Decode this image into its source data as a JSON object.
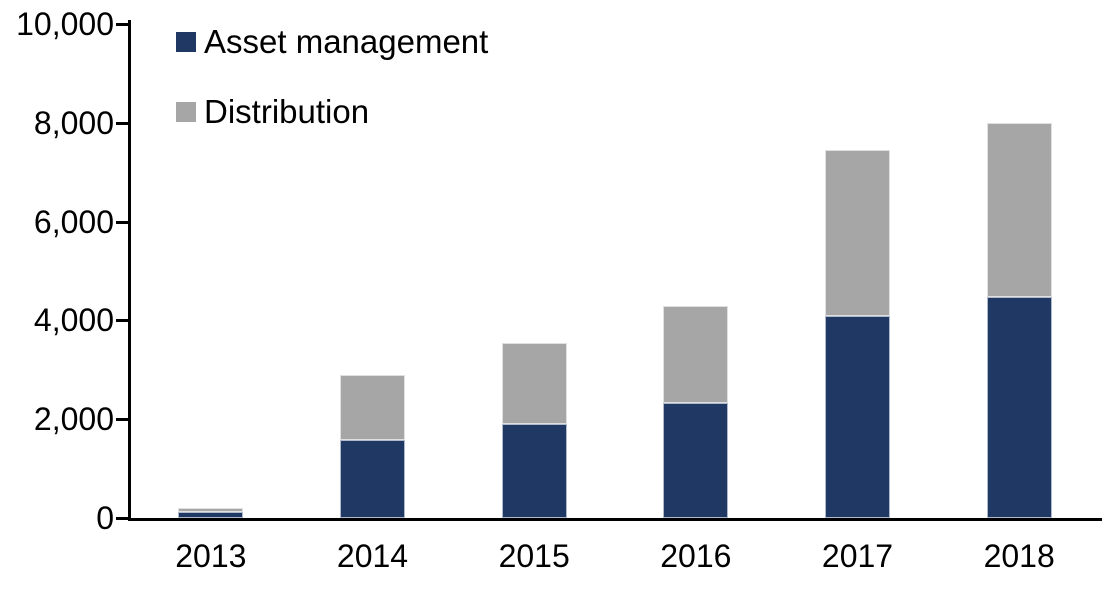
{
  "chart_data": {
    "type": "bar",
    "stacked": true,
    "title": "",
    "categories": [
      "2013",
      "2014",
      "2015",
      "2016",
      "2017",
      "2018"
    ],
    "series": [
      {
        "name": "Asset management",
        "color": "#1f3864",
        "values": [
          120,
          1575,
          1900,
          2325,
          4080,
          4465
        ]
      },
      {
        "name": "Distribution",
        "color": "#a6a6a6",
        "values": [
          80,
          1315,
          1635,
          1960,
          3370,
          3535
        ]
      }
    ],
    "totals": [
      200,
      2890,
      3535,
      4285,
      7450,
      8000
    ],
    "xlabel": "",
    "ylabel": "",
    "ylim": [
      0,
      10000
    ],
    "ytick_interval": 2000,
    "ytick_labels": [
      "0",
      "2,000",
      "4,000",
      "6,000",
      "8,000",
      "10,000"
    ],
    "grid": false,
    "legend_position": "top-left"
  },
  "colors": {
    "axis": "#000000",
    "text": "#000000",
    "background": "#ffffff"
  }
}
